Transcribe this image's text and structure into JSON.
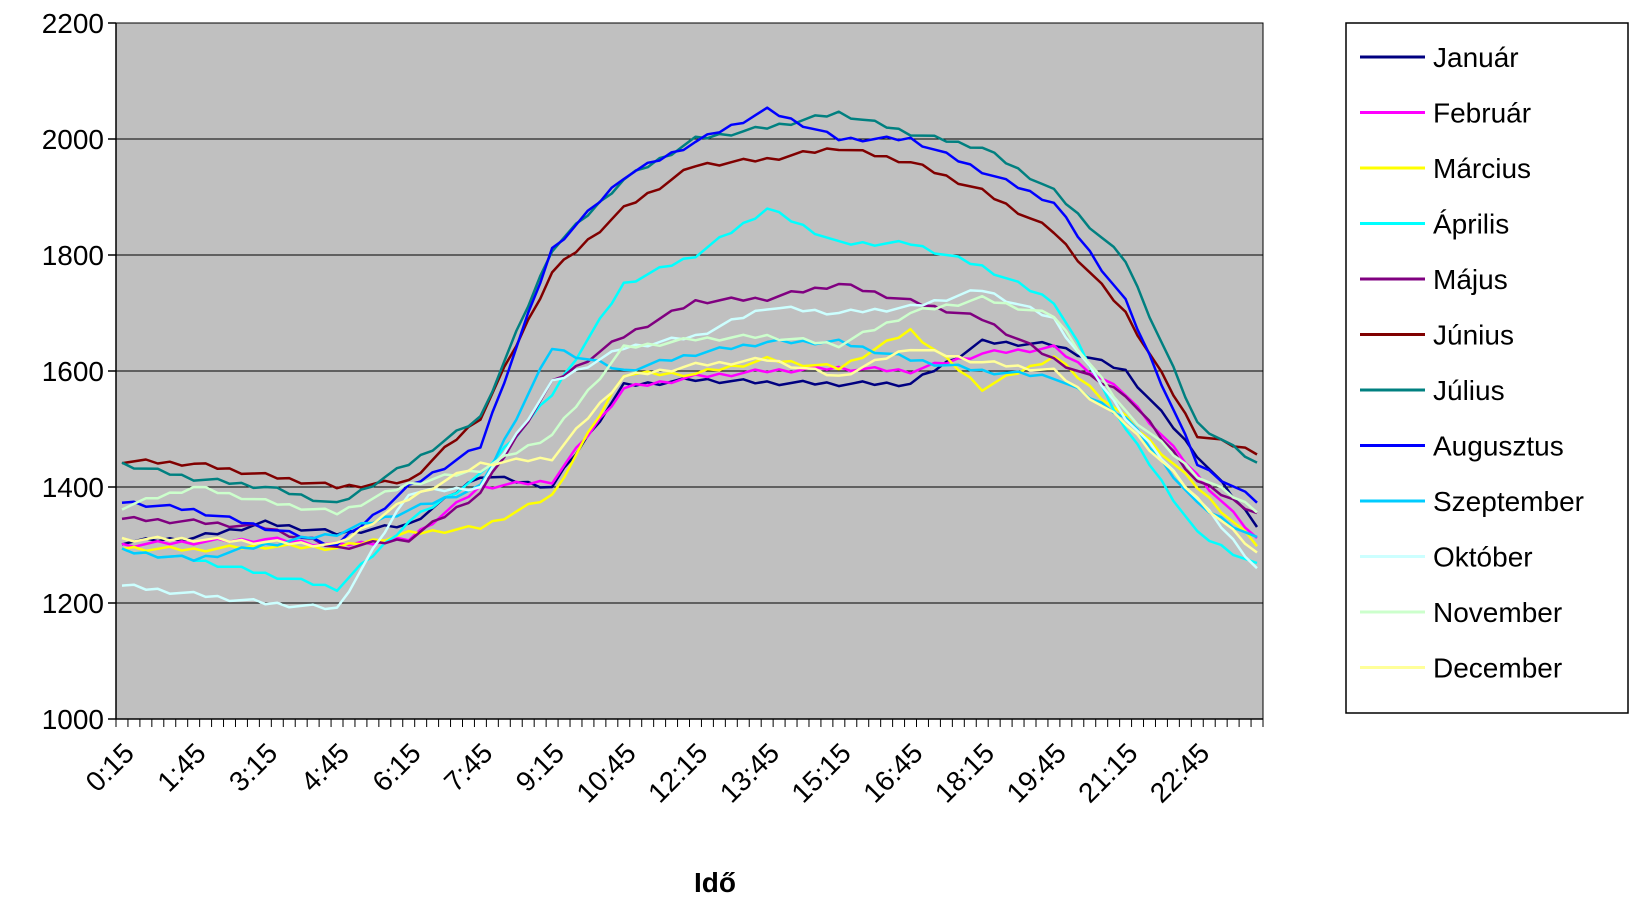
{
  "chart_data": {
    "type": "line",
    "xlabel": "Idő",
    "ylabel": "",
    "ylim": [
      1000,
      2200
    ],
    "yticks": [
      1000,
      1200,
      1400,
      1600,
      1800,
      2000,
      2200
    ],
    "x_tick_labels": [
      "0:15",
      "1:45",
      "3:15",
      "4:45",
      "6:15",
      "7:45",
      "9:15",
      "10:45",
      "12:15",
      "13:45",
      "15:15",
      "16:45",
      "18:15",
      "19:45",
      "21:15",
      "22:45"
    ],
    "grid": "horizontal",
    "plot_background": "#c0c0c0",
    "legend_position": "right",
    "x": [
      "0:15",
      "0:30",
      "0:45",
      "1:00",
      "1:15",
      "1:30",
      "1:45",
      "2:00",
      "2:15",
      "2:30",
      "2:45",
      "3:00",
      "3:15",
      "3:30",
      "3:45",
      "4:00",
      "4:15",
      "4:30",
      "4:45",
      "5:00",
      "5:15",
      "5:30",
      "5:45",
      "6:00",
      "6:15",
      "6:30",
      "6:45",
      "7:00",
      "7:15",
      "7:30",
      "7:45",
      "8:00",
      "8:15",
      "8:30",
      "8:45",
      "9:00",
      "9:15",
      "9:30",
      "9:45",
      "10:00",
      "10:15",
      "10:30",
      "10:45",
      "11:00",
      "11:15",
      "11:30",
      "11:45",
      "12:00",
      "12:15",
      "12:30",
      "12:45",
      "13:00",
      "13:15",
      "13:30",
      "13:45",
      "14:00",
      "14:15",
      "14:30",
      "14:45",
      "15:00",
      "15:15",
      "15:30",
      "15:45",
      "16:00",
      "16:15",
      "16:30",
      "16:45",
      "17:00",
      "17:15",
      "17:30",
      "17:45",
      "18:00",
      "18:15",
      "18:30",
      "18:45",
      "19:00",
      "19:15",
      "19:30",
      "19:45",
      "20:00",
      "20:15",
      "20:30",
      "20:45",
      "21:00",
      "21:15",
      "21:30",
      "21:45",
      "22:00",
      "22:15",
      "22:30",
      "22:45",
      "23:00",
      "23:15",
      "23:30",
      "23:45",
      "0:00"
    ],
    "series_anchors_note_x_index": [
      0,
      6,
      12,
      18,
      24,
      30,
      36,
      42,
      48,
      54,
      60,
      66,
      72,
      78,
      84,
      90,
      95
    ],
    "series": [
      {
        "name": "Január",
        "color": "#000080",
        "anchors": [
          1305,
          1312,
          1338,
          1320,
          1335,
          1420,
          1400,
          1575,
          1585,
          1580,
          1578,
          1578,
          1650,
          1645,
          1600,
          1455,
          1335
        ]
      },
      {
        "name": "Február",
        "color": "#ff00ff",
        "anchors": [
          1300,
          1305,
          1310,
          1300,
          1310,
          1400,
          1410,
          1570,
          1590,
          1600,
          1605,
          1600,
          1630,
          1640,
          1560,
          1420,
          1310
        ]
      },
      {
        "name": "Március",
        "color": "#ffff00",
        "anchors": [
          1295,
          1292,
          1298,
          1295,
          1320,
          1330,
          1385,
          1595,
          1595,
          1620,
          1605,
          1670,
          1570,
          1625,
          1520,
          1400,
          1300
        ]
      },
      {
        "name": "Április",
        "color": "#00ffff",
        "anchors": [
          1290,
          1275,
          1250,
          1225,
          1340,
          1420,
          1560,
          1750,
          1800,
          1880,
          1820,
          1820,
          1780,
          1720,
          1500,
          1320,
          1265
        ]
      },
      {
        "name": "Május",
        "color": "#800080",
        "anchors": [
          1345,
          1340,
          1330,
          1295,
          1310,
          1390,
          1580,
          1660,
          1720,
          1725,
          1750,
          1720,
          1690,
          1620,
          1560,
          1410,
          1355
        ]
      },
      {
        "name": "Június",
        "color": "#800000",
        "anchors": [
          1445,
          1440,
          1420,
          1400,
          1410,
          1520,
          1770,
          1880,
          1955,
          1965,
          1985,
          1960,
          1910,
          1840,
          1700,
          1490,
          1460
        ]
      },
      {
        "name": "Július",
        "color": "#008080",
        "anchors": [
          1440,
          1415,
          1400,
          1370,
          1440,
          1520,
          1810,
          1930,
          2000,
          2020,
          2045,
          2010,
          1985,
          1910,
          1790,
          1510,
          1440
        ]
      },
      {
        "name": "Augusztus",
        "color": "#0000ff",
        "anchors": [
          1375,
          1360,
          1330,
          1300,
          1400,
          1470,
          1810,
          1935,
          1995,
          2050,
          2000,
          2000,
          1945,
          1890,
          1720,
          1440,
          1375
        ]
      },
      {
        "name": "Szeptember",
        "color": "#00ccff",
        "anchors": [
          1290,
          1275,
          1300,
          1320,
          1360,
          1400,
          1640,
          1600,
          1630,
          1650,
          1650,
          1620,
          1600,
          1590,
          1520,
          1370,
          1310
        ]
      },
      {
        "name": "Október",
        "color": "#ccffff",
        "anchors": [
          1230,
          1215,
          1200,
          1190,
          1390,
          1400,
          1580,
          1640,
          1660,
          1710,
          1700,
          1710,
          1740,
          1690,
          1520,
          1380,
          1260
        ]
      },
      {
        "name": "November",
        "color": "#ccffcc",
        "anchors": [
          1365,
          1400,
          1375,
          1355,
          1405,
          1430,
          1490,
          1640,
          1655,
          1660,
          1645,
          1700,
          1725,
          1695,
          1530,
          1420,
          1360
        ]
      },
      {
        "name": "December",
        "color": "#ffff99",
        "anchors": [
          1310,
          1310,
          1305,
          1300,
          1380,
          1440,
          1450,
          1590,
          1610,
          1620,
          1590,
          1640,
          1615,
          1600,
          1510,
          1380,
          1285
        ]
      }
    ]
  }
}
